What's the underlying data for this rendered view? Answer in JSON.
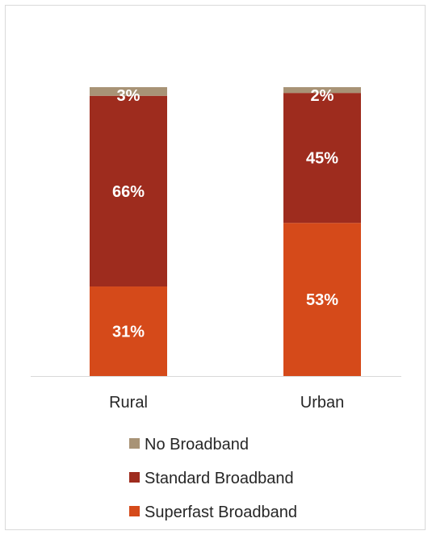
{
  "chart_data": {
    "type": "bar",
    "stacked": true,
    "categories": [
      "Rural",
      "Urban"
    ],
    "series": [
      {
        "name": "Superfast Broadband",
        "values": [
          31,
          53
        ],
        "color": "#d54a1a",
        "labels": [
          "31%",
          "53%"
        ]
      },
      {
        "name": "Standard Broadband",
        "values": [
          66,
          45
        ],
        "color": "#9e2c1e",
        "labels": [
          "66%",
          "45%"
        ]
      },
      {
        "name": "No Broadband",
        "values": [
          3,
          2
        ],
        "color": "#a89376",
        "labels": [
          "3%",
          "2%"
        ]
      }
    ],
    "ylim": [
      0,
      100
    ],
    "grid": false,
    "legend_position": "bottom",
    "legend_order": [
      "No Broadband",
      "Standard Broadband",
      "Superfast Broadband"
    ]
  }
}
